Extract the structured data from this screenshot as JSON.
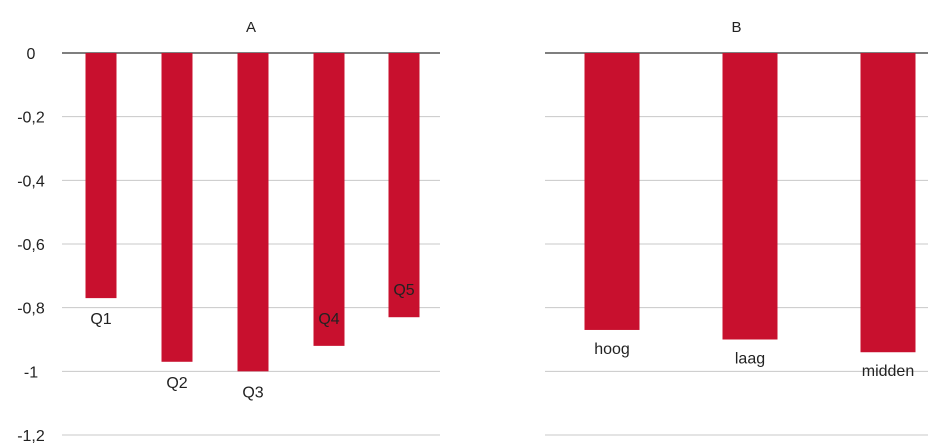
{
  "chart_data": [
    {
      "type": "bar",
      "title": "A",
      "categories": [
        "Q1",
        "Q2",
        "Q3",
        "Q4",
        "Q5"
      ],
      "values": [
        -0.77,
        -0.97,
        -1.0,
        -0.92,
        -0.83
      ],
      "ylim": [
        -1.2,
        0
      ],
      "yticks": [
        "0",
        "-0,2",
        "-0,4",
        "-0,6",
        "-0,8",
        "-1",
        "-1,2"
      ],
      "grid": true,
      "color": "#c8102e"
    },
    {
      "type": "bar",
      "title": "B",
      "categories": [
        "hoog",
        "laag",
        "midden"
      ],
      "values": [
        -0.87,
        -0.9,
        -0.94
      ],
      "ylim": [
        -1.2,
        0
      ],
      "grid": true,
      "color": "#c8102e"
    }
  ]
}
